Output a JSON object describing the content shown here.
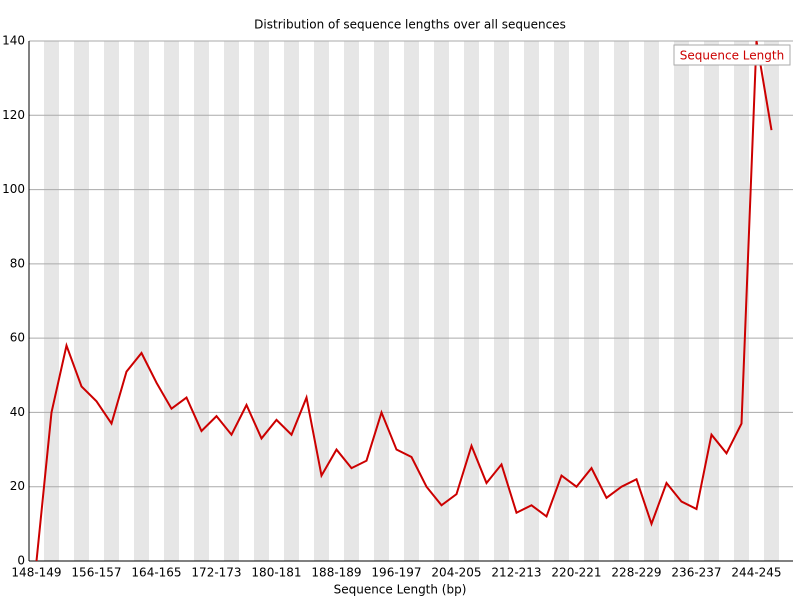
{
  "chart_data": {
    "type": "line",
    "title": "Distribution of sequence lengths over all sequences",
    "x_label": "Sequence Length (bp)",
    "categories": [
      "148-149",
      null,
      null,
      null,
      "156-157",
      null,
      null,
      null,
      "164-165",
      null,
      null,
      null,
      "172-173",
      null,
      null,
      null,
      "180-181",
      null,
      null,
      null,
      "188-189",
      null,
      null,
      null,
      "196-197",
      null,
      null,
      null,
      "204-205",
      null,
      null,
      null,
      "212-213",
      null,
      null,
      null,
      "220-221",
      null,
      null,
      null,
      "228-229",
      null,
      null,
      null,
      "236-237",
      null,
      null,
      null,
      "244-245",
      null
    ],
    "series": [
      {
        "name": "Sequence Length",
        "color": "#cc0000",
        "values": [
          0,
          40,
          58,
          47,
          43,
          37,
          51,
          56,
          48,
          41,
          44,
          35,
          39,
          34,
          42,
          33,
          38,
          34,
          44,
          23,
          30,
          25,
          27,
          40,
          30,
          28,
          20,
          15,
          18,
          31,
          21,
          26,
          13,
          15,
          12,
          23,
          20,
          25,
          17,
          20,
          22,
          10,
          21,
          16,
          14,
          34,
          29,
          37,
          140,
          116
        ]
      }
    ],
    "ylim": [
      0,
      140
    ],
    "yticks": [
      0,
      20,
      40,
      60,
      80,
      100,
      120,
      140
    ],
    "grid": true,
    "legend": "top-right"
  }
}
